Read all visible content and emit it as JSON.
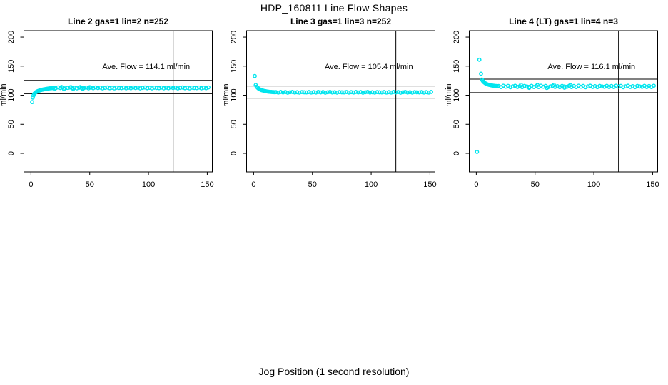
{
  "figure": {
    "title": "HDP_160811  Line Flow Shapes",
    "xlabel": "Jog Position (1 second resolution)",
    "colors": {
      "points": "#00E5EE",
      "lines": "#000000",
      "background": "#FFFFFF",
      "text": "#000000"
    }
  },
  "chart_data": [
    {
      "type": "scatter",
      "title": "Line 2 gas=1 lin=2 n=252",
      "ylabel": "ml/min",
      "annotation": "Ave. Flow =  114.1  ml/min",
      "ave_flow_ml_min": 114.1,
      "n": 252,
      "xticks": [
        0,
        50,
        100,
        150
      ],
      "yticks": [
        0,
        50,
        100,
        150,
        200
      ],
      "xlim": [
        -6,
        154.3
      ],
      "ylim": [
        -31.9,
        211.1
      ],
      "ref_line_upper": 125.5,
      "ref_line_lower": 102.7,
      "vline_x": 121,
      "legend": "none",
      "grid": false,
      "points": [
        [
          1,
          88.2
        ],
        [
          1.6,
          96
        ],
        [
          2.2,
          99.8
        ],
        [
          2.8,
          102.4
        ],
        [
          3.5,
          104
        ],
        [
          4.2,
          105.2
        ],
        [
          5,
          106.2
        ],
        [
          5.8,
          107
        ],
        [
          6.6,
          107.7
        ],
        [
          7.4,
          108.2
        ],
        [
          8.2,
          108.7
        ],
        [
          9,
          109.1
        ],
        [
          10,
          109.6
        ],
        [
          11,
          110.1
        ],
        [
          12,
          110.5
        ],
        [
          13,
          110.9
        ],
        [
          14,
          111.2
        ],
        [
          15,
          111.5
        ],
        [
          16,
          111.8
        ],
        [
          17,
          112
        ],
        [
          18,
          112.2
        ],
        [
          19,
          112.9
        ],
        [
          21,
          112
        ],
        [
          23,
          113.4
        ],
        [
          25,
          112.3
        ],
        [
          27,
          113.1
        ],
        [
          29,
          111.7
        ],
        [
          31,
          112.6
        ],
        [
          33,
          113.3
        ],
        [
          35,
          112.1
        ],
        [
          37,
          112.8
        ],
        [
          39,
          111.8
        ],
        [
          41,
          113
        ],
        [
          43,
          112.5
        ],
        [
          45,
          112.2
        ],
        [
          47,
          113.2
        ],
        [
          49,
          111.9
        ],
        [
          51,
          112.9
        ],
        [
          53,
          112
        ],
        [
          55,
          113.4
        ],
        [
          57,
          112.3
        ],
        [
          59,
          113.1
        ],
        [
          61,
          111.7
        ],
        [
          63,
          112.6
        ],
        [
          65,
          113.3
        ],
        [
          67,
          112.1
        ],
        [
          69,
          112.8
        ],
        [
          71,
          111.8
        ],
        [
          73,
          113
        ],
        [
          75,
          112.5
        ],
        [
          77,
          112.2
        ],
        [
          79,
          113.2
        ],
        [
          81,
          111.9
        ],
        [
          83,
          112.9
        ],
        [
          85,
          112
        ],
        [
          87,
          113.4
        ],
        [
          89,
          112.3
        ],
        [
          91,
          113.1
        ],
        [
          93,
          111.7
        ],
        [
          95,
          112.6
        ],
        [
          97,
          113.3
        ],
        [
          99,
          112.1
        ],
        [
          101,
          112.8
        ],
        [
          103,
          111.8
        ],
        [
          105,
          113
        ],
        [
          107,
          112.5
        ],
        [
          109,
          112.2
        ],
        [
          111,
          113.2
        ],
        [
          113,
          111.9
        ],
        [
          115,
          112.9
        ],
        [
          117,
          112
        ],
        [
          119,
          113.4
        ],
        [
          121,
          112.3
        ],
        [
          123,
          113.1
        ],
        [
          125,
          111.7
        ],
        [
          127,
          112.6
        ],
        [
          129,
          113.3
        ],
        [
          131,
          112.1
        ],
        [
          133,
          112.8
        ],
        [
          135,
          111.8
        ],
        [
          137,
          113
        ],
        [
          139,
          112.5
        ],
        [
          141,
          112.2
        ],
        [
          143,
          113.2
        ],
        [
          145,
          111.9
        ],
        [
          147,
          112.9
        ],
        [
          149,
          112
        ],
        [
          151,
          113.4
        ],
        [
          20,
          110.9
        ],
        [
          26,
          114.1
        ],
        [
          28,
          110.7
        ],
        [
          34,
          114
        ],
        [
          36,
          110.9
        ],
        [
          42,
          113.9
        ],
        [
          44,
          111
        ],
        [
          50,
          113.8
        ]
      ]
    },
    {
      "type": "scatter",
      "title": "Line 3 gas=1 lin=3 n=252",
      "ylabel": "ml/min",
      "annotation": "Ave. Flow =  105.4  ml/min",
      "ave_flow_ml_min": 105.4,
      "n": 252,
      "xticks": [
        0,
        50,
        100,
        150
      ],
      "yticks": [
        0,
        50,
        100,
        150,
        200
      ],
      "xlim": [
        -6,
        154.3
      ],
      "ylim": [
        -31.9,
        211.1
      ],
      "ref_line_upper": 115.9,
      "ref_line_lower": 94.9,
      "vline_x": 121,
      "legend": "none",
      "grid": false,
      "points": [
        [
          1,
          133
        ],
        [
          1.8,
          117.5
        ],
        [
          2.6,
          114.5
        ],
        [
          3.4,
          112.8
        ],
        [
          4.2,
          111.5
        ],
        [
          5,
          110.4
        ],
        [
          6,
          109.4
        ],
        [
          7,
          108.6
        ],
        [
          8,
          108
        ],
        [
          9,
          107.4
        ],
        [
          10,
          107
        ],
        [
          11,
          106.6
        ],
        [
          12,
          106.3
        ],
        [
          13,
          106
        ],
        [
          14,
          105.8
        ],
        [
          15,
          105.6
        ],
        [
          16,
          105.4
        ],
        [
          17,
          105.3
        ],
        [
          18,
          105.2
        ],
        [
          19,
          105.3
        ],
        [
          21,
          104.6
        ],
        [
          23,
          105.6
        ],
        [
          25,
          104.8
        ],
        [
          27,
          105.5
        ],
        [
          29,
          104.4
        ],
        [
          31,
          105.1
        ],
        [
          33,
          105.6
        ],
        [
          35,
          104.7
        ],
        [
          37,
          105.2
        ],
        [
          39,
          104.5
        ],
        [
          41,
          105.4
        ],
        [
          43,
          105
        ],
        [
          45,
          104.8
        ],
        [
          47,
          105.5
        ],
        [
          49,
          104.6
        ],
        [
          51,
          105.3
        ],
        [
          53,
          104.6
        ],
        [
          55,
          105.6
        ],
        [
          57,
          104.8
        ],
        [
          59,
          105.5
        ],
        [
          61,
          104.4
        ],
        [
          63,
          105.1
        ],
        [
          65,
          105.6
        ],
        [
          67,
          104.7
        ],
        [
          69,
          105.2
        ],
        [
          71,
          104.5
        ],
        [
          73,
          105.4
        ],
        [
          75,
          105
        ],
        [
          77,
          104.8
        ],
        [
          79,
          105.5
        ],
        [
          81,
          104.6
        ],
        [
          83,
          105.3
        ],
        [
          85,
          104.6
        ],
        [
          87,
          105.6
        ],
        [
          89,
          104.8
        ],
        [
          91,
          105.5
        ],
        [
          93,
          104.4
        ],
        [
          95,
          105.1
        ],
        [
          97,
          105.6
        ],
        [
          99,
          104.7
        ],
        [
          101,
          105.2
        ],
        [
          103,
          104.5
        ],
        [
          105,
          105.4
        ],
        [
          107,
          105
        ],
        [
          109,
          104.8
        ],
        [
          111,
          105.5
        ],
        [
          113,
          104.6
        ],
        [
          115,
          105.3
        ],
        [
          117,
          104.6
        ],
        [
          119,
          105.6
        ],
        [
          121,
          104.8
        ],
        [
          123,
          105.5
        ],
        [
          125,
          104.4
        ],
        [
          127,
          105.1
        ],
        [
          129,
          105.6
        ],
        [
          131,
          104.7
        ],
        [
          133,
          105.2
        ],
        [
          135,
          104.5
        ],
        [
          137,
          105.4
        ],
        [
          139,
          105
        ],
        [
          141,
          104.8
        ],
        [
          143,
          105.5
        ],
        [
          145,
          104.6
        ],
        [
          147,
          105.3
        ],
        [
          149,
          104.6
        ],
        [
          151,
          105.6
        ]
      ]
    },
    {
      "type": "scatter",
      "title": "Line 4 (LT) gas=1 lin=4 n=3",
      "ylabel": "ml/min",
      "annotation": "Ave. Flow =  116.1  ml/min",
      "ave_flow_ml_min": 116.1,
      "n": 3,
      "xticks": [
        0,
        50,
        100,
        150
      ],
      "yticks": [
        0,
        50,
        100,
        150,
        200
      ],
      "xlim": [
        -6,
        154.3
      ],
      "ylim": [
        -31.9,
        211.1
      ],
      "ref_line_upper": 127.7,
      "ref_line_lower": 104.5,
      "vline_x": 121,
      "legend": "none",
      "grid": false,
      "points": [
        [
          0.6,
          2.5
        ],
        [
          2.6,
          161
        ],
        [
          4,
          137
        ],
        [
          4.8,
          127
        ],
        [
          5.4,
          125
        ],
        [
          6,
          123.4
        ],
        [
          6.8,
          121.8
        ],
        [
          7.6,
          120.6
        ],
        [
          8.4,
          119.6
        ],
        [
          9.2,
          118.9
        ],
        [
          10,
          118.3
        ],
        [
          11,
          117.7
        ],
        [
          12,
          117.2
        ],
        [
          13,
          116.8
        ],
        [
          14,
          116.5
        ],
        [
          15,
          116.2
        ],
        [
          16,
          116
        ],
        [
          17,
          115.8
        ],
        [
          18,
          115.6
        ],
        [
          19,
          115.8
        ],
        [
          21,
          114
        ],
        [
          23,
          116.3
        ],
        [
          25,
          114.6
        ],
        [
          27,
          116
        ],
        [
          29,
          113.7
        ],
        [
          31,
          115.2
        ],
        [
          33,
          116.2
        ],
        [
          35,
          114.2
        ],
        [
          37,
          115.5
        ],
        [
          39,
          113.9
        ],
        [
          41,
          115.9
        ],
        [
          43,
          115
        ],
        [
          45,
          114.4
        ],
        [
          47,
          116.1
        ],
        [
          49,
          114.1
        ],
        [
          51,
          115.8
        ],
        [
          53,
          114
        ],
        [
          55,
          116.3
        ],
        [
          57,
          114.6
        ],
        [
          59,
          116
        ],
        [
          61,
          113.7
        ],
        [
          63,
          115.2
        ],
        [
          65,
          116.2
        ],
        [
          67,
          114.2
        ],
        [
          69,
          115.5
        ],
        [
          71,
          113.9
        ],
        [
          73,
          115.9
        ],
        [
          75,
          115
        ],
        [
          77,
          114.4
        ],
        [
          79,
          116.1
        ],
        [
          81,
          114.1
        ],
        [
          83,
          115.8
        ],
        [
          85,
          114
        ],
        [
          87,
          116.3
        ],
        [
          89,
          114.6
        ],
        [
          91,
          116
        ],
        [
          93,
          113.7
        ],
        [
          95,
          115.2
        ],
        [
          97,
          116.2
        ],
        [
          99,
          114.2
        ],
        [
          101,
          115.5
        ],
        [
          103,
          113.9
        ],
        [
          105,
          115.9
        ],
        [
          107,
          115
        ],
        [
          109,
          114.4
        ],
        [
          111,
          116.1
        ],
        [
          113,
          114.1
        ],
        [
          115,
          115.8
        ],
        [
          117,
          114
        ],
        [
          119,
          116.3
        ],
        [
          121,
          114.6
        ],
        [
          123,
          116
        ],
        [
          125,
          113.7
        ],
        [
          127,
          115.2
        ],
        [
          129,
          116.2
        ],
        [
          131,
          114.2
        ],
        [
          133,
          115.5
        ],
        [
          135,
          113.9
        ],
        [
          137,
          115.9
        ],
        [
          139,
          115
        ],
        [
          141,
          114.4
        ],
        [
          143,
          116.1
        ],
        [
          145,
          114.1
        ],
        [
          147,
          115.8
        ],
        [
          149,
          114
        ],
        [
          151,
          116.3
        ],
        [
          38,
          117.9
        ],
        [
          52,
          117.6
        ],
        [
          66,
          117.8
        ],
        [
          80,
          117.4
        ],
        [
          45,
          112.7
        ],
        [
          60,
          112.5
        ],
        [
          75,
          112.9
        ]
      ]
    }
  ]
}
